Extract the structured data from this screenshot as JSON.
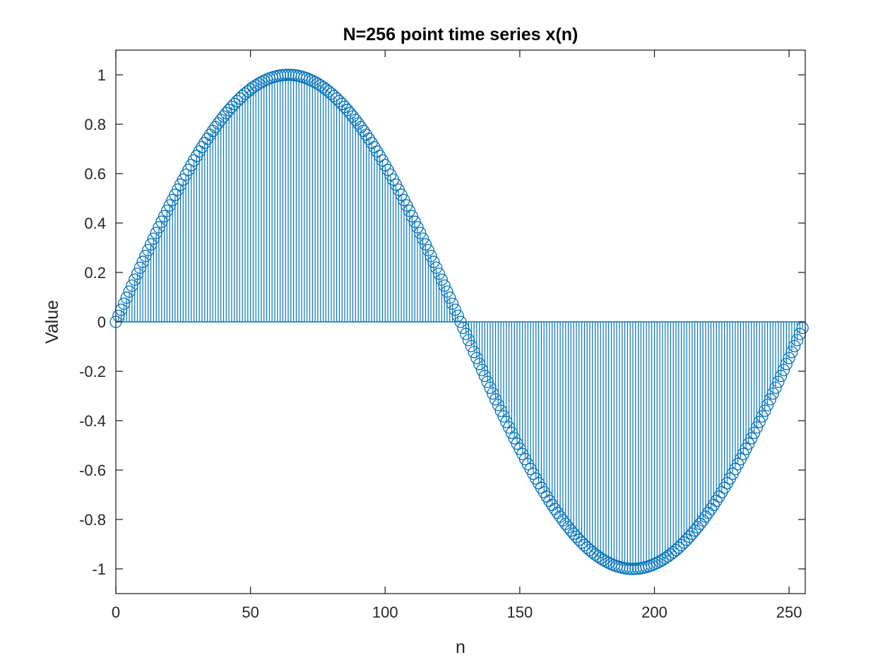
{
  "chart_data": {
    "type": "stem",
    "title": "N=256 point time series x(n)",
    "xlabel": "n",
    "ylabel": "Value",
    "xlim": [
      0,
      256
    ],
    "ylim": [
      -1.1,
      1.1
    ],
    "x_ticks": [
      0,
      50,
      100,
      150,
      200,
      250
    ],
    "x_tick_labels": [
      "0",
      "50",
      "100",
      "150",
      "200",
      "250"
    ],
    "y_ticks": [
      -1,
      -0.8,
      -0.6,
      -0.4,
      -0.2,
      0,
      0.2,
      0.4,
      0.6,
      0.8,
      1
    ],
    "y_tick_labels": [
      "-1",
      "-0.8",
      "-0.6",
      "-0.4",
      "-0.2",
      "0",
      "0.2",
      "0.4",
      "0.6",
      "0.8",
      "1"
    ],
    "grid": false,
    "box": true,
    "series": [
      {
        "signal": "x(n) = sin(2*pi*n/256)",
        "n_start": 0,
        "n_end": 255,
        "marker": "open-circle",
        "color": "#0072BD"
      }
    ]
  }
}
